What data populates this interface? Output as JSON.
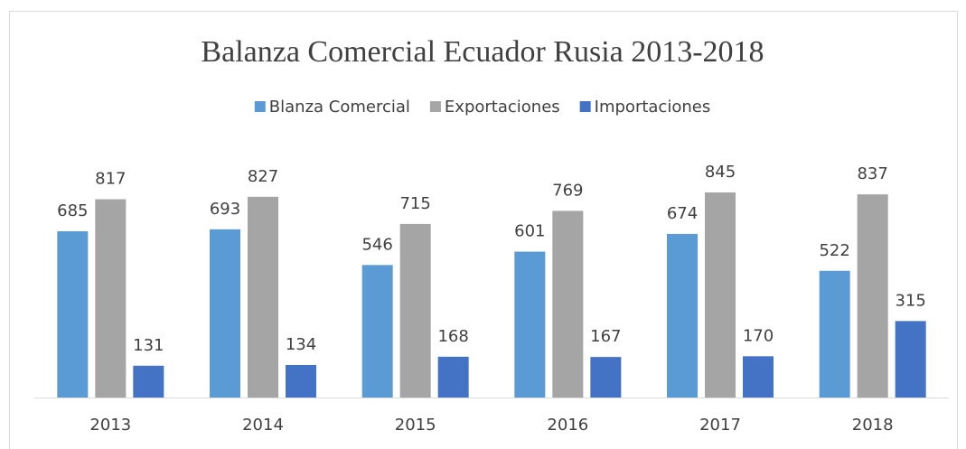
{
  "chart_data": {
    "type": "bar",
    "title": "Balanza Comercial Ecuador Rusia 2013-2018",
    "categories": [
      "2013",
      "2014",
      "2015",
      "2016",
      "2017",
      "2018"
    ],
    "series": [
      {
        "name": "Blanza Comercial",
        "color": "#5b9bd5",
        "values": [
          685,
          693,
          546,
          601,
          674,
          522
        ]
      },
      {
        "name": "Exportaciones",
        "color": "#a5a5a5",
        "values": [
          817,
          827,
          715,
          769,
          845,
          837
        ]
      },
      {
        "name": "Importaciones",
        "color": "#4472c4",
        "values": [
          131,
          134,
          168,
          167,
          170,
          315
        ]
      }
    ],
    "legend": "top"
  }
}
